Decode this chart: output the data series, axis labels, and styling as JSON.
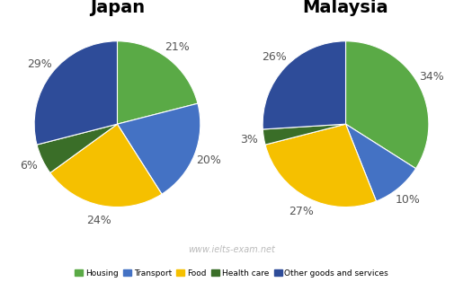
{
  "japan": {
    "title": "Japan",
    "values": [
      21,
      20,
      24,
      6,
      29
    ],
    "labels": [
      "21%",
      "20%",
      "24%",
      "6%",
      "29%"
    ],
    "startangle": 90
  },
  "malaysia": {
    "title": "Malaysia",
    "values": [
      34,
      10,
      27,
      3,
      26
    ],
    "labels": [
      "34%",
      "10%",
      "27%",
      "3%",
      "26%"
    ],
    "startangle": 90
  },
  "colors": [
    "#5aaa46",
    "#4472c4",
    "#f5c000",
    "#3a6e28",
    "#2e4c99"
  ],
  "legend_labels": [
    "Housing",
    "Transport",
    "Food",
    "Health care",
    "Other goods and services"
  ],
  "watermark": "www.ielts-exam.net",
  "title_fontsize": 14,
  "label_fontsize": 9,
  "watermark_color": "#bbbbbb",
  "background_color": "#ffffff"
}
